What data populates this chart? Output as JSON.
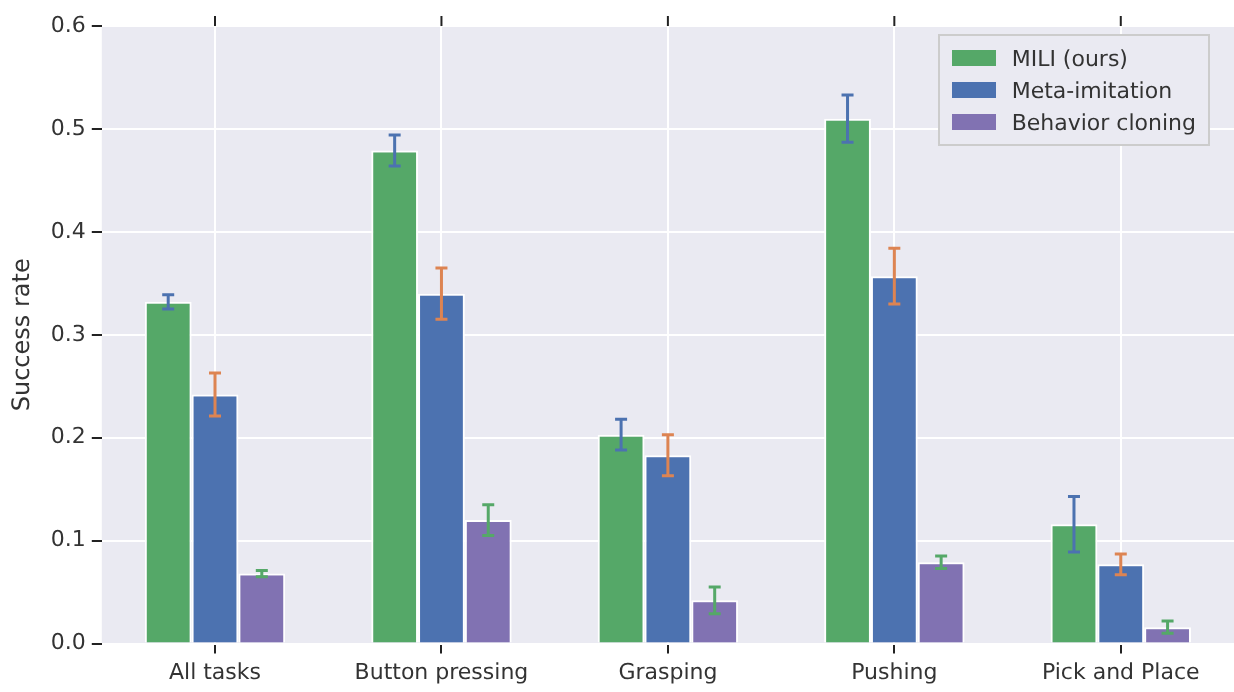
{
  "chart_data": {
    "type": "bar",
    "ylabel": "Success rate",
    "categories": [
      "All tasks",
      "Button pressing",
      "Grasping",
      "Pushing",
      "Pick and Place"
    ],
    "series": [
      {
        "name": "MILI (ours)",
        "color": "#55a868",
        "values": [
          0.332,
          0.479,
          0.203,
          0.51,
          0.116
        ],
        "errors": [
          0.007,
          0.015,
          0.015,
          0.023,
          0.027
        ]
      },
      {
        "name": "Meta-imitation",
        "color": "#4c72b0",
        "values": [
          0.242,
          0.34,
          0.183,
          0.357,
          0.077
        ],
        "errors": [
          0.021,
          0.025,
          0.02,
          0.027,
          0.01
        ]
      },
      {
        "name": "Behavior cloning",
        "color": "#8172b2",
        "values": [
          0.068,
          0.12,
          0.042,
          0.079,
          0.016
        ],
        "errors": [
          0.003,
          0.015,
          0.013,
          0.006,
          0.006
        ]
      }
    ],
    "ylim": [
      0,
      0.6
    ],
    "yticks": [
      {
        "value": 0,
        "label": "0.0"
      },
      {
        "value": 0.1,
        "label": "0.1"
      },
      {
        "value": 0.2,
        "label": "0.2"
      },
      {
        "value": 0.3,
        "label": "0.3"
      },
      {
        "value": 0.4,
        "label": "0.4"
      },
      {
        "value": 0.5,
        "label": "0.5"
      },
      {
        "value": 0.6,
        "label": "0.6"
      }
    ],
    "grid": true,
    "legend": "top right"
  }
}
